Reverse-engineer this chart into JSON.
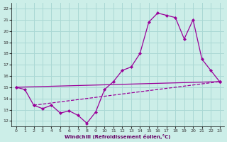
{
  "xlabel": "Windchill (Refroidissement éolien,°C)",
  "xlim": [
    -0.5,
    23.5
  ],
  "ylim": [
    11.5,
    22.5
  ],
  "xticks": [
    0,
    1,
    2,
    3,
    4,
    5,
    6,
    7,
    8,
    9,
    10,
    11,
    12,
    13,
    14,
    15,
    16,
    17,
    18,
    19,
    20,
    21,
    22,
    23
  ],
  "yticks": [
    12,
    13,
    14,
    15,
    16,
    17,
    18,
    19,
    20,
    21,
    22
  ],
  "bg_color": "#cceee8",
  "grid_color": "#aad8d4",
  "line_color": "#990099",
  "line1_x": [
    0,
    1,
    2,
    3,
    4,
    5,
    6,
    7,
    8,
    9,
    10,
    11,
    12,
    13,
    14,
    15,
    16,
    17,
    18,
    19,
    20,
    21,
    22,
    23
  ],
  "line1_y": [
    15.0,
    14.8,
    13.4,
    13.1,
    13.4,
    12.7,
    12.9,
    12.5,
    11.8,
    12.8,
    14.8,
    15.5,
    16.5,
    16.8,
    18.0,
    20.8,
    21.6,
    21.4,
    21.2,
    19.3,
    21.0,
    17.5,
    16.5,
    15.5
  ],
  "line2_x": [
    0,
    23
  ],
  "line2_y": [
    15.0,
    15.5
  ],
  "line3_x": [
    2,
    23
  ],
  "line3_y": [
    13.4,
    15.5
  ]
}
